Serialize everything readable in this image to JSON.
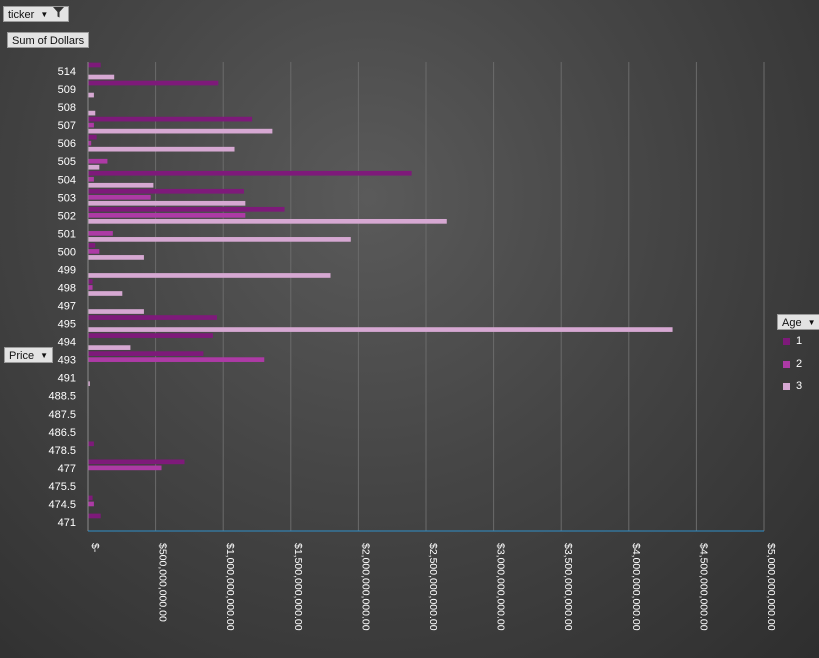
{
  "filters": {
    "ticker_label": "ticker",
    "sum_label": "Sum of Dollars",
    "axis_field_label": "Price",
    "legend_field_label": "Age"
  },
  "colors": {
    "series": [
      "#7e1a7a",
      "#ad3aa5",
      "#d6a8d2"
    ],
    "axis_line": "#2f8fc8"
  },
  "chart_data": {
    "type": "bar",
    "orientation": "horizontal",
    "value_axis": {
      "min": 0,
      "max": 5000000000,
      "ticks": [
        "$-",
        "$500,000,000.00",
        "$1,000,000,000.00",
        "$1,500,000,000.00",
        "$2,000,000,000.00",
        "$2,500,000,000.00",
        "$3,000,000,000.00",
        "$3,500,000,000.00",
        "$4,000,000,000.00",
        "$4,500,000,000.00",
        "$5,000,000,000.00"
      ]
    },
    "categories": [
      "514",
      "509",
      "508",
      "507",
      "506",
      "505",
      "504",
      "503",
      "502",
      "501",
      "500",
      "499",
      "498",
      "497",
      "495",
      "494",
      "493",
      "491",
      "488.5",
      "487.5",
      "486.5",
      "478.5",
      "477",
      "475.5",
      "474.5",
      "471"
    ],
    "legend_title": "Age",
    "series": [
      {
        "name": "1",
        "values": [
          90000000,
          960000000,
          0,
          1210000000,
          60000000,
          0,
          2390000000,
          1150000000,
          1450000000,
          0,
          50000000,
          0,
          30000000,
          0,
          950000000,
          920000000,
          850000000,
          0,
          0,
          0,
          0,
          40000000,
          710000000,
          0,
          30000000,
          90000000
        ]
      },
      {
        "name": "2",
        "values": [
          0,
          0,
          0,
          40000000,
          20000000,
          140000000,
          40000000,
          460000000,
          1160000000,
          180000000,
          80000000,
          0,
          30000000,
          0,
          0,
          0,
          1300000000,
          0,
          0,
          0,
          0,
          0,
          540000000,
          0,
          40000000,
          0
        ]
      },
      {
        "name": "3",
        "values": [
          190000000,
          40000000,
          50000000,
          1360000000,
          1080000000,
          80000000,
          480000000,
          1160000000,
          2650000000,
          1940000000,
          410000000,
          1790000000,
          250000000,
          410000000,
          4320000000,
          310000000,
          0,
          10000000,
          0,
          0,
          0,
          0,
          0,
          0,
          0,
          0
        ]
      }
    ]
  }
}
